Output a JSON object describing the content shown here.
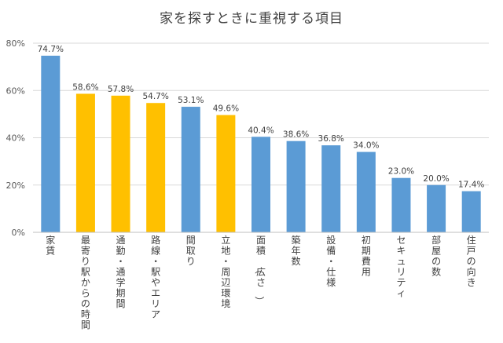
{
  "chart_data": {
    "type": "bar",
    "title": "家を探すときに重視する項目",
    "categories": [
      "家賃",
      "最寄り駅からの時間",
      "通勤・通学期間",
      "路線・駅やエリア",
      "間取り",
      "立地・周辺環境",
      "面積（広さ）",
      "築年数",
      "設備・仕様",
      "初期費用",
      "セキュリティ",
      "部屋の数",
      "住戸の向き"
    ],
    "values": [
      74.7,
      58.6,
      57.8,
      54.7,
      53.1,
      49.6,
      40.4,
      38.6,
      36.8,
      34.0,
      23.0,
      20.0,
      17.4
    ],
    "value_labels": [
      "74.7%",
      "58.6%",
      "57.8%",
      "54.7%",
      "53.1%",
      "49.6%",
      "40.4%",
      "38.6%",
      "36.8%",
      "34.0%",
      "23.0%",
      "20.0%",
      "17.4%"
    ],
    "highlight": [
      false,
      true,
      true,
      true,
      false,
      true,
      false,
      false,
      false,
      false,
      false,
      false,
      false
    ],
    "colors": {
      "default": "#5b9bd5",
      "highlight": "#ffc000",
      "grid": "#d9d9d9",
      "axis_text": "#595959",
      "label_text": "#404040"
    },
    "ylim": [
      0,
      80
    ],
    "yticks": [
      "0%",
      "20%",
      "40%",
      "60%",
      "80%"
    ],
    "ytick_values": [
      0,
      20,
      40,
      60,
      80
    ],
    "xlabel": "",
    "ylabel": "",
    "grid": true,
    "legend": "none"
  }
}
